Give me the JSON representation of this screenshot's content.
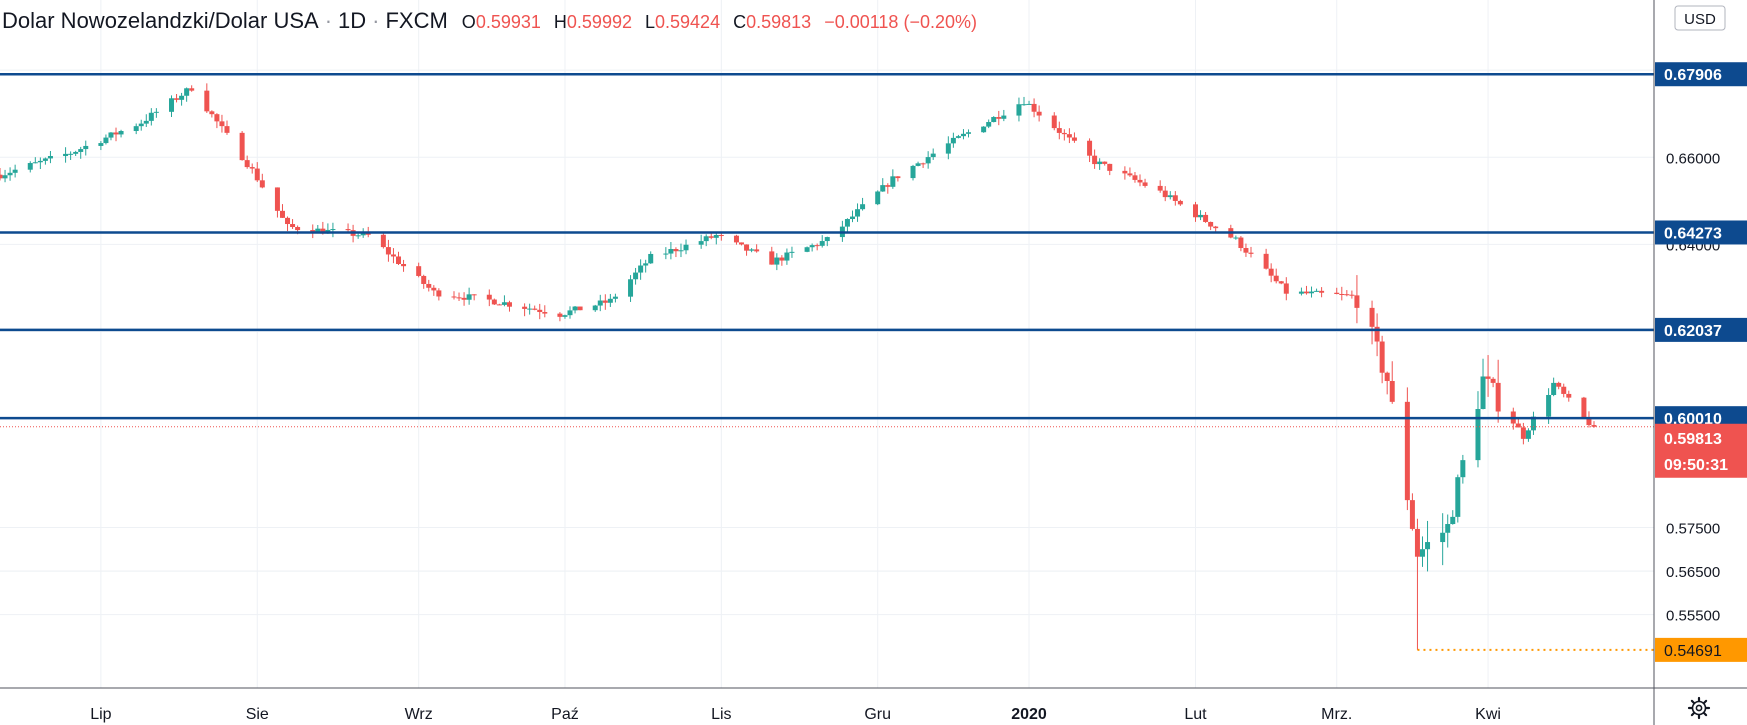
{
  "legend": {
    "symbol": "Dolar Nowozelandzki/Dolar USA",
    "interval": "1D",
    "exchange": "FXCM",
    "o_label": "O",
    "o_value": "0.59931",
    "h_label": "H",
    "h_value": "0.59992",
    "l_label": "L",
    "l_value": "0.59424",
    "c_label": "C",
    "c_value": "0.59813",
    "change": "−0.00118 (−0.20%)"
  },
  "currency_label": "USD",
  "colors": {
    "up": "#26a69a",
    "down": "#ef5350",
    "level_line": "#0d4a8f",
    "price_tag": "#ef5350",
    "low_tag": "#ff9800",
    "grid": "#eef1f5",
    "axis_text": "#131722"
  },
  "chart_data": {
    "type": "candlestick",
    "title": "Dolar Nowozelandzki/Dolar USA · 1D · FXCM",
    "y_axis_ticks": [
      0.66,
      0.64,
      0.575,
      0.565,
      0.555
    ],
    "y_axis_tick_labels": [
      "0.66000",
      "0.64000",
      "0.57500",
      "0.56500",
      "0.55500"
    ],
    "ylim": [
      0.5377,
      0.6961
    ],
    "x_axis_labels": [
      "Lip",
      "Sie",
      "Wrz",
      "Paź",
      "Lis",
      "Gru",
      "2020",
      "Lut",
      "Mrz.",
      "Kwi"
    ],
    "x_range": [
      "2019-06-11",
      "2020-04-22"
    ],
    "x_ticks": [
      "2019-07-01",
      "2019-08-01",
      "2019-09-02",
      "2019-10-01",
      "2019-11-01",
      "2019-12-02",
      "2020-01-01",
      "2020-02-03",
      "2020-03-02",
      "2020-04-01"
    ],
    "horizontal_levels": [
      0.67906,
      0.64273,
      0.62037,
      0.6001
    ],
    "level_labels": [
      "0.67906",
      "0.64273",
      "0.62037",
      "0.60010"
    ],
    "last_price": 0.59813,
    "last_price_label": "0.59813",
    "countdown": "09:50:31",
    "low_marker": 0.54691,
    "low_marker_label": "0.54691",
    "low_marker_date": "2020-03-18",
    "close_series": {
      "dates": [
        "2019-06-11",
        "2019-06-25",
        "2019-07-09",
        "2019-07-19",
        "2019-07-31",
        "2019-08-07",
        "2019-08-23",
        "2019-09-05",
        "2019-09-17",
        "2019-09-30",
        "2019-10-10",
        "2019-10-18",
        "2019-10-31",
        "2019-11-11",
        "2019-11-22",
        "2019-12-05",
        "2019-12-16",
        "2019-12-31",
        "2020-01-14",
        "2020-01-27",
        "2020-02-11",
        "2020-02-21",
        "2020-03-06",
        "2020-03-12",
        "2020-03-18",
        "2020-03-24",
        "2020-03-31",
        "2020-04-08",
        "2020-04-14",
        "2020-04-20",
        "2020-04-22"
      ],
      "close": [
        0.656,
        0.661,
        0.668,
        0.676,
        0.657,
        0.644,
        0.642,
        0.629,
        0.627,
        0.624,
        0.627,
        0.637,
        0.642,
        0.636,
        0.641,
        0.655,
        0.663,
        0.673,
        0.659,
        0.652,
        0.641,
        0.629,
        0.628,
        0.609,
        0.569,
        0.575,
        0.609,
        0.596,
        0.608,
        0.6,
        0.5981
      ]
    }
  }
}
